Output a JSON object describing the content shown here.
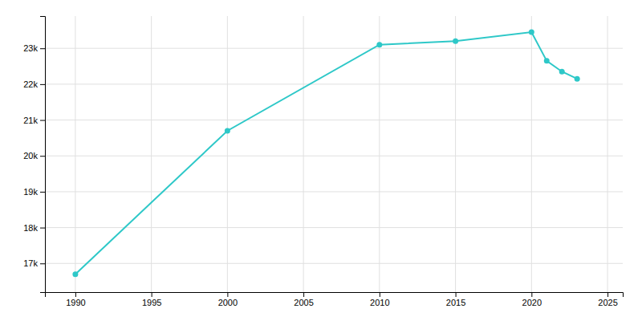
{
  "chart_data": {
    "type": "line",
    "x": [
      1990,
      2000,
      2010,
      2015,
      2020,
      2021,
      2022,
      2023
    ],
    "values": [
      16700,
      20700,
      23100,
      23200,
      23450,
      22650,
      22350,
      22150
    ],
    "color": "#2ec8c8",
    "marker": "circle",
    "xlim": [
      1988,
      2026
    ],
    "ylim": [
      16200,
      23900
    ],
    "xticks": [
      1990,
      1995,
      2000,
      2005,
      2010,
      2015,
      2020,
      2025
    ],
    "yticks": [
      {
        "value": 17000,
        "label": "17k"
      },
      {
        "value": 18000,
        "label": "18k"
      },
      {
        "value": 19000,
        "label": "19k"
      },
      {
        "value": 20000,
        "label": "20k"
      },
      {
        "value": 21000,
        "label": "21k"
      },
      {
        "value": 22000,
        "label": "22k"
      },
      {
        "value": 23000,
        "label": "23k"
      }
    ],
    "grid": true
  }
}
